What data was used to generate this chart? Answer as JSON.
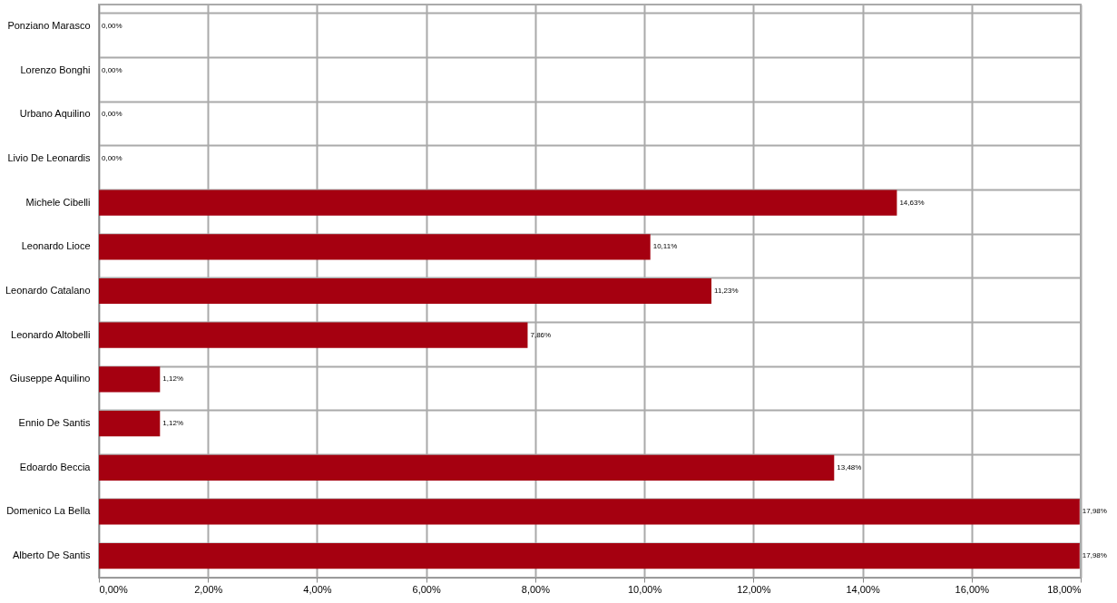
{
  "chart_data": {
    "type": "bar",
    "orientation": "horizontal",
    "categories": [
      "Ponziano Marasco",
      "Lorenzo Bonghi",
      "Urbano Aquilino",
      "Livio De Leonardis",
      "Michele Cibelli",
      "Leonardo Lioce",
      "Leonardo Catalano",
      "Leonardo Altobelli",
      "Giuseppe Aquilino",
      "Ennio De Santis",
      "Edoardo Beccia",
      "Domenico La Bella",
      "Alberto De Santis"
    ],
    "values": [
      0,
      0,
      0,
      0,
      14.63,
      10.11,
      11.23,
      7.86,
      1.12,
      1.12,
      13.48,
      17.98,
      17.98
    ],
    "value_labels": [
      "0,00%",
      "0,00%",
      "0,00%",
      "0,00%",
      "14,63%",
      "10,11%",
      "11,23%",
      "7,86%",
      "1,12%",
      "1,12%",
      "13,48%",
      "17,98%",
      "17,98%"
    ],
    "color": "#a50010",
    "xlim": [
      0,
      18
    ],
    "xticks": [
      {
        "value": 0,
        "label": "0,00%"
      },
      {
        "value": 2,
        "label": "2,00%"
      },
      {
        "value": 4,
        "label": "4,00%"
      },
      {
        "value": 6,
        "label": "6,00%"
      },
      {
        "value": 8,
        "label": "8,00%"
      },
      {
        "value": 10,
        "label": "10,00%"
      },
      {
        "value": 12,
        "label": "12,00%"
      },
      {
        "value": 14,
        "label": "14,00%"
      },
      {
        "value": 16,
        "label": "16,00%"
      },
      {
        "value": 18,
        "label": "18,00%"
      }
    ],
    "grid": true
  }
}
